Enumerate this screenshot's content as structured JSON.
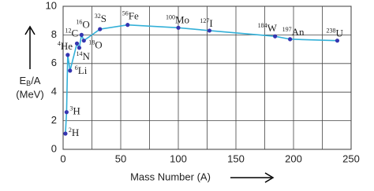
{
  "chart_data": {
    "type": "line",
    "x_label": "Mass Number (A)",
    "y_label": {
      "symbol": "E",
      "subscript": "B",
      "rest": "/A",
      "unit": "(MeV)"
    },
    "x": [
      2,
      3,
      4,
      6,
      12,
      14,
      16,
      18,
      32,
      56,
      100,
      127,
      184,
      197,
      238
    ],
    "elements": [
      "H",
      "H",
      "He",
      "Li",
      "C",
      "N",
      "O",
      "O",
      "S",
      "Fe",
      "Mo",
      "I",
      "W",
      "An",
      "U"
    ],
    "values": [
      1.1,
      2.6,
      6.6,
      5.5,
      7.4,
      7.1,
      8.0,
      7.6,
      8.4,
      8.7,
      8.5,
      8.3,
      7.9,
      7.7,
      7.6
    ],
    "line_color": "#33b0d8",
    "marker_color": "#3535b0",
    "xlim": [
      0,
      250
    ],
    "xticks": [
      0,
      50,
      100,
      150,
      200,
      250
    ],
    "x_minor_ticks": [
      25,
      75,
      125,
      175,
      225
    ],
    "ylim": [
      0,
      10
    ],
    "yticks": [
      0,
      2,
      4,
      6,
      8,
      10
    ],
    "grid": true
  }
}
